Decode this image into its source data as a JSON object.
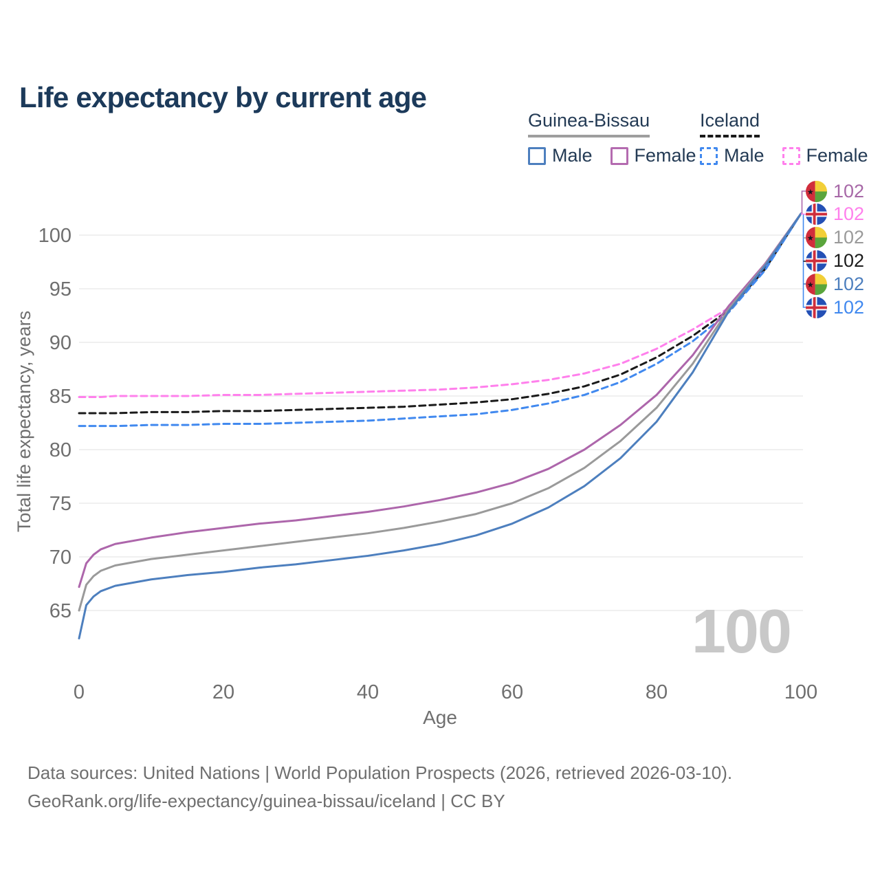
{
  "title": "Life expectancy by current age",
  "watermark": "100",
  "legend": {
    "groups": [
      {
        "title": "Guinea-Bissau",
        "line_style": "solid",
        "underline_color": "#9e9e9e",
        "items": [
          {
            "label": "Male",
            "color": "#4d7fbe"
          },
          {
            "label": "Female",
            "color": "#b46bb0"
          }
        ]
      },
      {
        "title": "Iceland",
        "line_style": "dashed",
        "underline_color": "#1a1a1a",
        "items": [
          {
            "label": "Male",
            "color": "#4189ef"
          },
          {
            "label": "Female",
            "color": "#ff80ec"
          }
        ]
      }
    ]
  },
  "chart_data": {
    "type": "line",
    "title": "Life expectancy by current age",
    "xlabel": "Age",
    "ylabel": "Total life expectancy, years",
    "xlim": [
      0,
      100
    ],
    "ylim": [
      62,
      103
    ],
    "xticks": [
      0,
      20,
      40,
      60,
      80,
      100
    ],
    "yticks": [
      65,
      70,
      75,
      80,
      85,
      90,
      95,
      100
    ],
    "grid": "horizontal",
    "legend_position": "top-right",
    "x": [
      0,
      1,
      2,
      3,
      5,
      10,
      15,
      20,
      25,
      30,
      35,
      40,
      45,
      50,
      55,
      60,
      65,
      70,
      75,
      80,
      85,
      90,
      95,
      100
    ],
    "series": [
      {
        "name": "Iceland Female",
        "country": "Iceland",
        "sex": "female",
        "style": "dashed",
        "color": "#ff80ec",
        "values": [
          84.9,
          84.9,
          84.9,
          84.9,
          85.0,
          85.0,
          85.0,
          85.1,
          85.1,
          85.2,
          85.3,
          85.4,
          85.5,
          85.6,
          85.8,
          86.1,
          86.5,
          87.1,
          88.0,
          89.4,
          91.2,
          93.2,
          96.9,
          102
        ]
      },
      {
        "name": "Iceland All",
        "country": "Iceland",
        "sex": "all",
        "style": "dashed",
        "color": "#1a1a1a",
        "values": [
          83.4,
          83.4,
          83.4,
          83.4,
          83.4,
          83.5,
          83.5,
          83.6,
          83.6,
          83.7,
          83.8,
          83.9,
          84.0,
          84.2,
          84.4,
          84.7,
          85.2,
          85.9,
          87.0,
          88.6,
          90.6,
          93.0,
          96.8,
          102
        ]
      },
      {
        "name": "Iceland Male",
        "country": "Iceland",
        "sex": "male",
        "style": "dashed",
        "color": "#4189ef",
        "values": [
          82.2,
          82.2,
          82.2,
          82.2,
          82.2,
          82.3,
          82.3,
          82.4,
          82.4,
          82.5,
          82.6,
          82.7,
          82.9,
          83.1,
          83.3,
          83.7,
          84.3,
          85.1,
          86.3,
          88.0,
          90.1,
          92.8,
          96.7,
          102
        ]
      },
      {
        "name": "Guinea-Bissau Female",
        "country": "Guinea-Bissau",
        "sex": "female",
        "style": "solid",
        "color": "#ad66ab",
        "values": [
          67.2,
          69.4,
          70.2,
          70.7,
          71.2,
          71.8,
          72.3,
          72.7,
          73.1,
          73.4,
          73.8,
          74.2,
          74.7,
          75.3,
          76.0,
          76.9,
          78.2,
          80.0,
          82.3,
          85.1,
          88.8,
          93.4,
          97.3,
          102
        ]
      },
      {
        "name": "Guinea-Bissau All",
        "country": "Guinea-Bissau",
        "sex": "all",
        "style": "solid",
        "color": "#9a9a9a",
        "values": [
          65.0,
          67.4,
          68.2,
          68.7,
          69.2,
          69.8,
          70.2,
          70.6,
          71.0,
          71.4,
          71.8,
          72.2,
          72.7,
          73.3,
          74.0,
          75.0,
          76.4,
          78.3,
          80.8,
          83.9,
          88.0,
          93.1,
          97.2,
          102
        ]
      },
      {
        "name": "Guinea-Bissau Male",
        "country": "Guinea-Bissau",
        "sex": "male",
        "style": "solid",
        "color": "#4d7fbe",
        "values": [
          62.4,
          65.5,
          66.3,
          66.8,
          67.3,
          67.9,
          68.3,
          68.6,
          69.0,
          69.3,
          69.7,
          70.1,
          70.6,
          71.2,
          72.0,
          73.1,
          74.6,
          76.6,
          79.2,
          82.6,
          87.2,
          92.9,
          97.1,
          102
        ]
      }
    ]
  },
  "right_labels": [
    {
      "flag": "guinea-bissau",
      "value": "102",
      "color": "#a768a7"
    },
    {
      "flag": "iceland",
      "value": "102",
      "color": "#ff80ec"
    },
    {
      "flag": "guinea-bissau",
      "value": "102",
      "color": "#9a9a9a"
    },
    {
      "flag": "iceland",
      "value": "102",
      "color": "#1c1c1c"
    },
    {
      "flag": "guinea-bissau",
      "value": "102",
      "color": "#4d7fbe"
    },
    {
      "flag": "iceland",
      "value": "102",
      "color": "#4189ef"
    }
  ],
  "footer": {
    "line1": "Data sources: United Nations | World Population Prospects (2026, retrieved 2026-03-10).",
    "line2": "GeoRank.org/life-expectancy/guinea-bissau/iceland | CC BY"
  }
}
